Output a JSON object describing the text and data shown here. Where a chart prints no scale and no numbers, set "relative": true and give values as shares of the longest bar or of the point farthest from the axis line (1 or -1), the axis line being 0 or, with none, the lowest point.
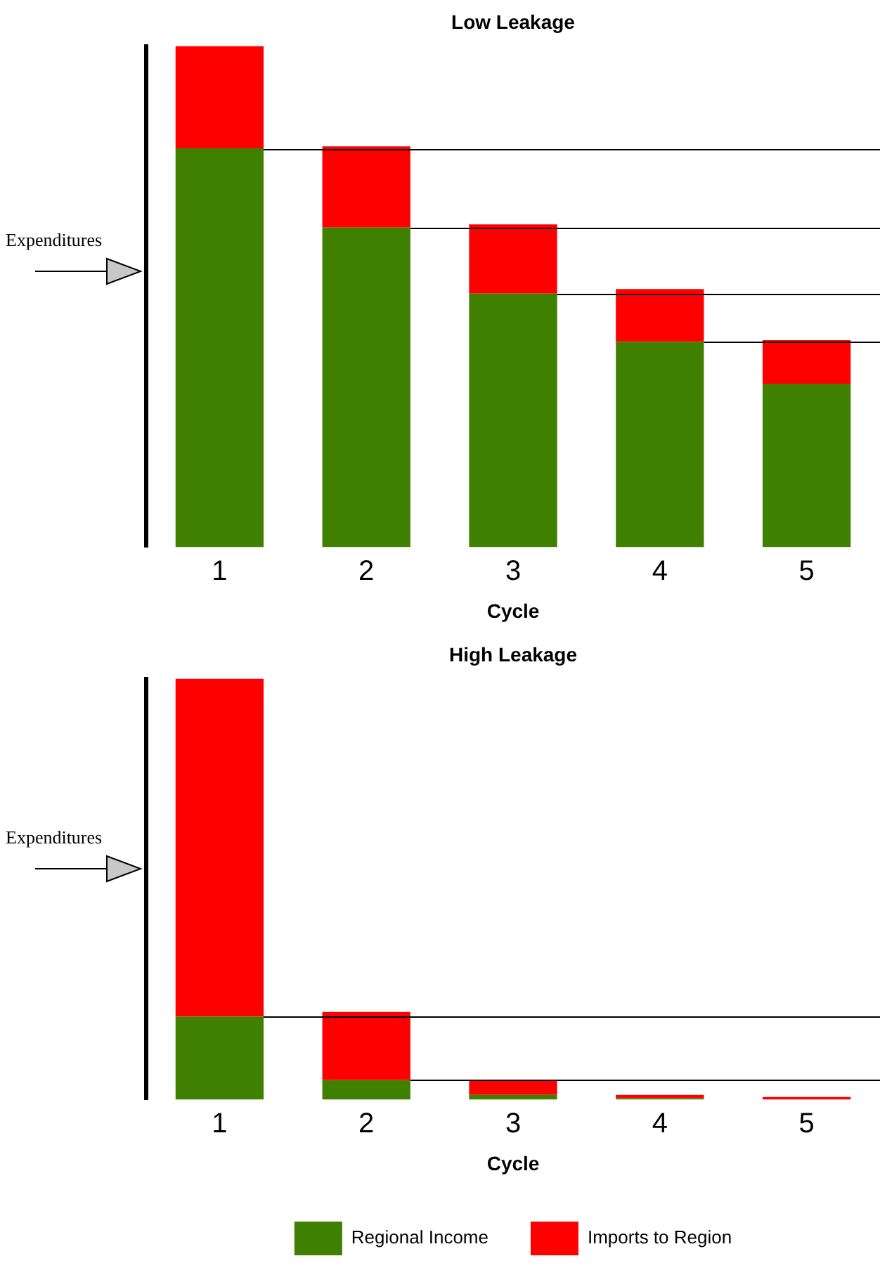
{
  "chart_data": [
    {
      "type": "bar",
      "title": "Low Leakage",
      "xlabel": "Cycle",
      "categories": [
        "1",
        "2",
        "3",
        "4",
        "5"
      ],
      "stacked": true,
      "relative": true,
      "legend": false,
      "annotations": [
        "Expenditures"
      ],
      "ref_lines": [
        {
          "axis": "y",
          "value": 0.796,
          "color": "#000000"
        },
        {
          "axis": "y",
          "value": 0.638,
          "color": "#000000"
        },
        {
          "axis": "y",
          "value": 0.506,
          "color": "#000000"
        },
        {
          "axis": "y",
          "value": 0.41,
          "color": "#000000"
        }
      ],
      "series": [
        {
          "color": "#408000",
          "values": [
            0.796,
            0.638,
            0.506,
            0.41,
            0.326
          ]
        },
        {
          "color": "#ff0000",
          "values": [
            0.204,
            0.162,
            0.138,
            0.105,
            0.087
          ]
        }
      ]
    },
    {
      "type": "bar",
      "title": "High Leakage",
      "xlabel": "Cycle",
      "categories": [
        "1",
        "2",
        "3",
        "4",
        "5"
      ],
      "stacked": true,
      "relative": true,
      "legend": "bottom",
      "annotations": [
        "Expenditures"
      ],
      "ref_lines": [
        {
          "axis": "y",
          "value": 0.197,
          "color": "#000000"
        },
        {
          "axis": "y",
          "value": 0.046,
          "color": "#000000"
        }
      ],
      "series": [
        {
          "name": "Regional Income",
          "color": "#408000",
          "values": [
            0.197,
            0.046,
            0.011,
            0.003,
            0
          ]
        },
        {
          "name": "Imports to Region",
          "color": "#ff0000",
          "values": [
            0.803,
            0.162,
            0.035,
            0.008,
            0.006
          ]
        }
      ]
    }
  ]
}
